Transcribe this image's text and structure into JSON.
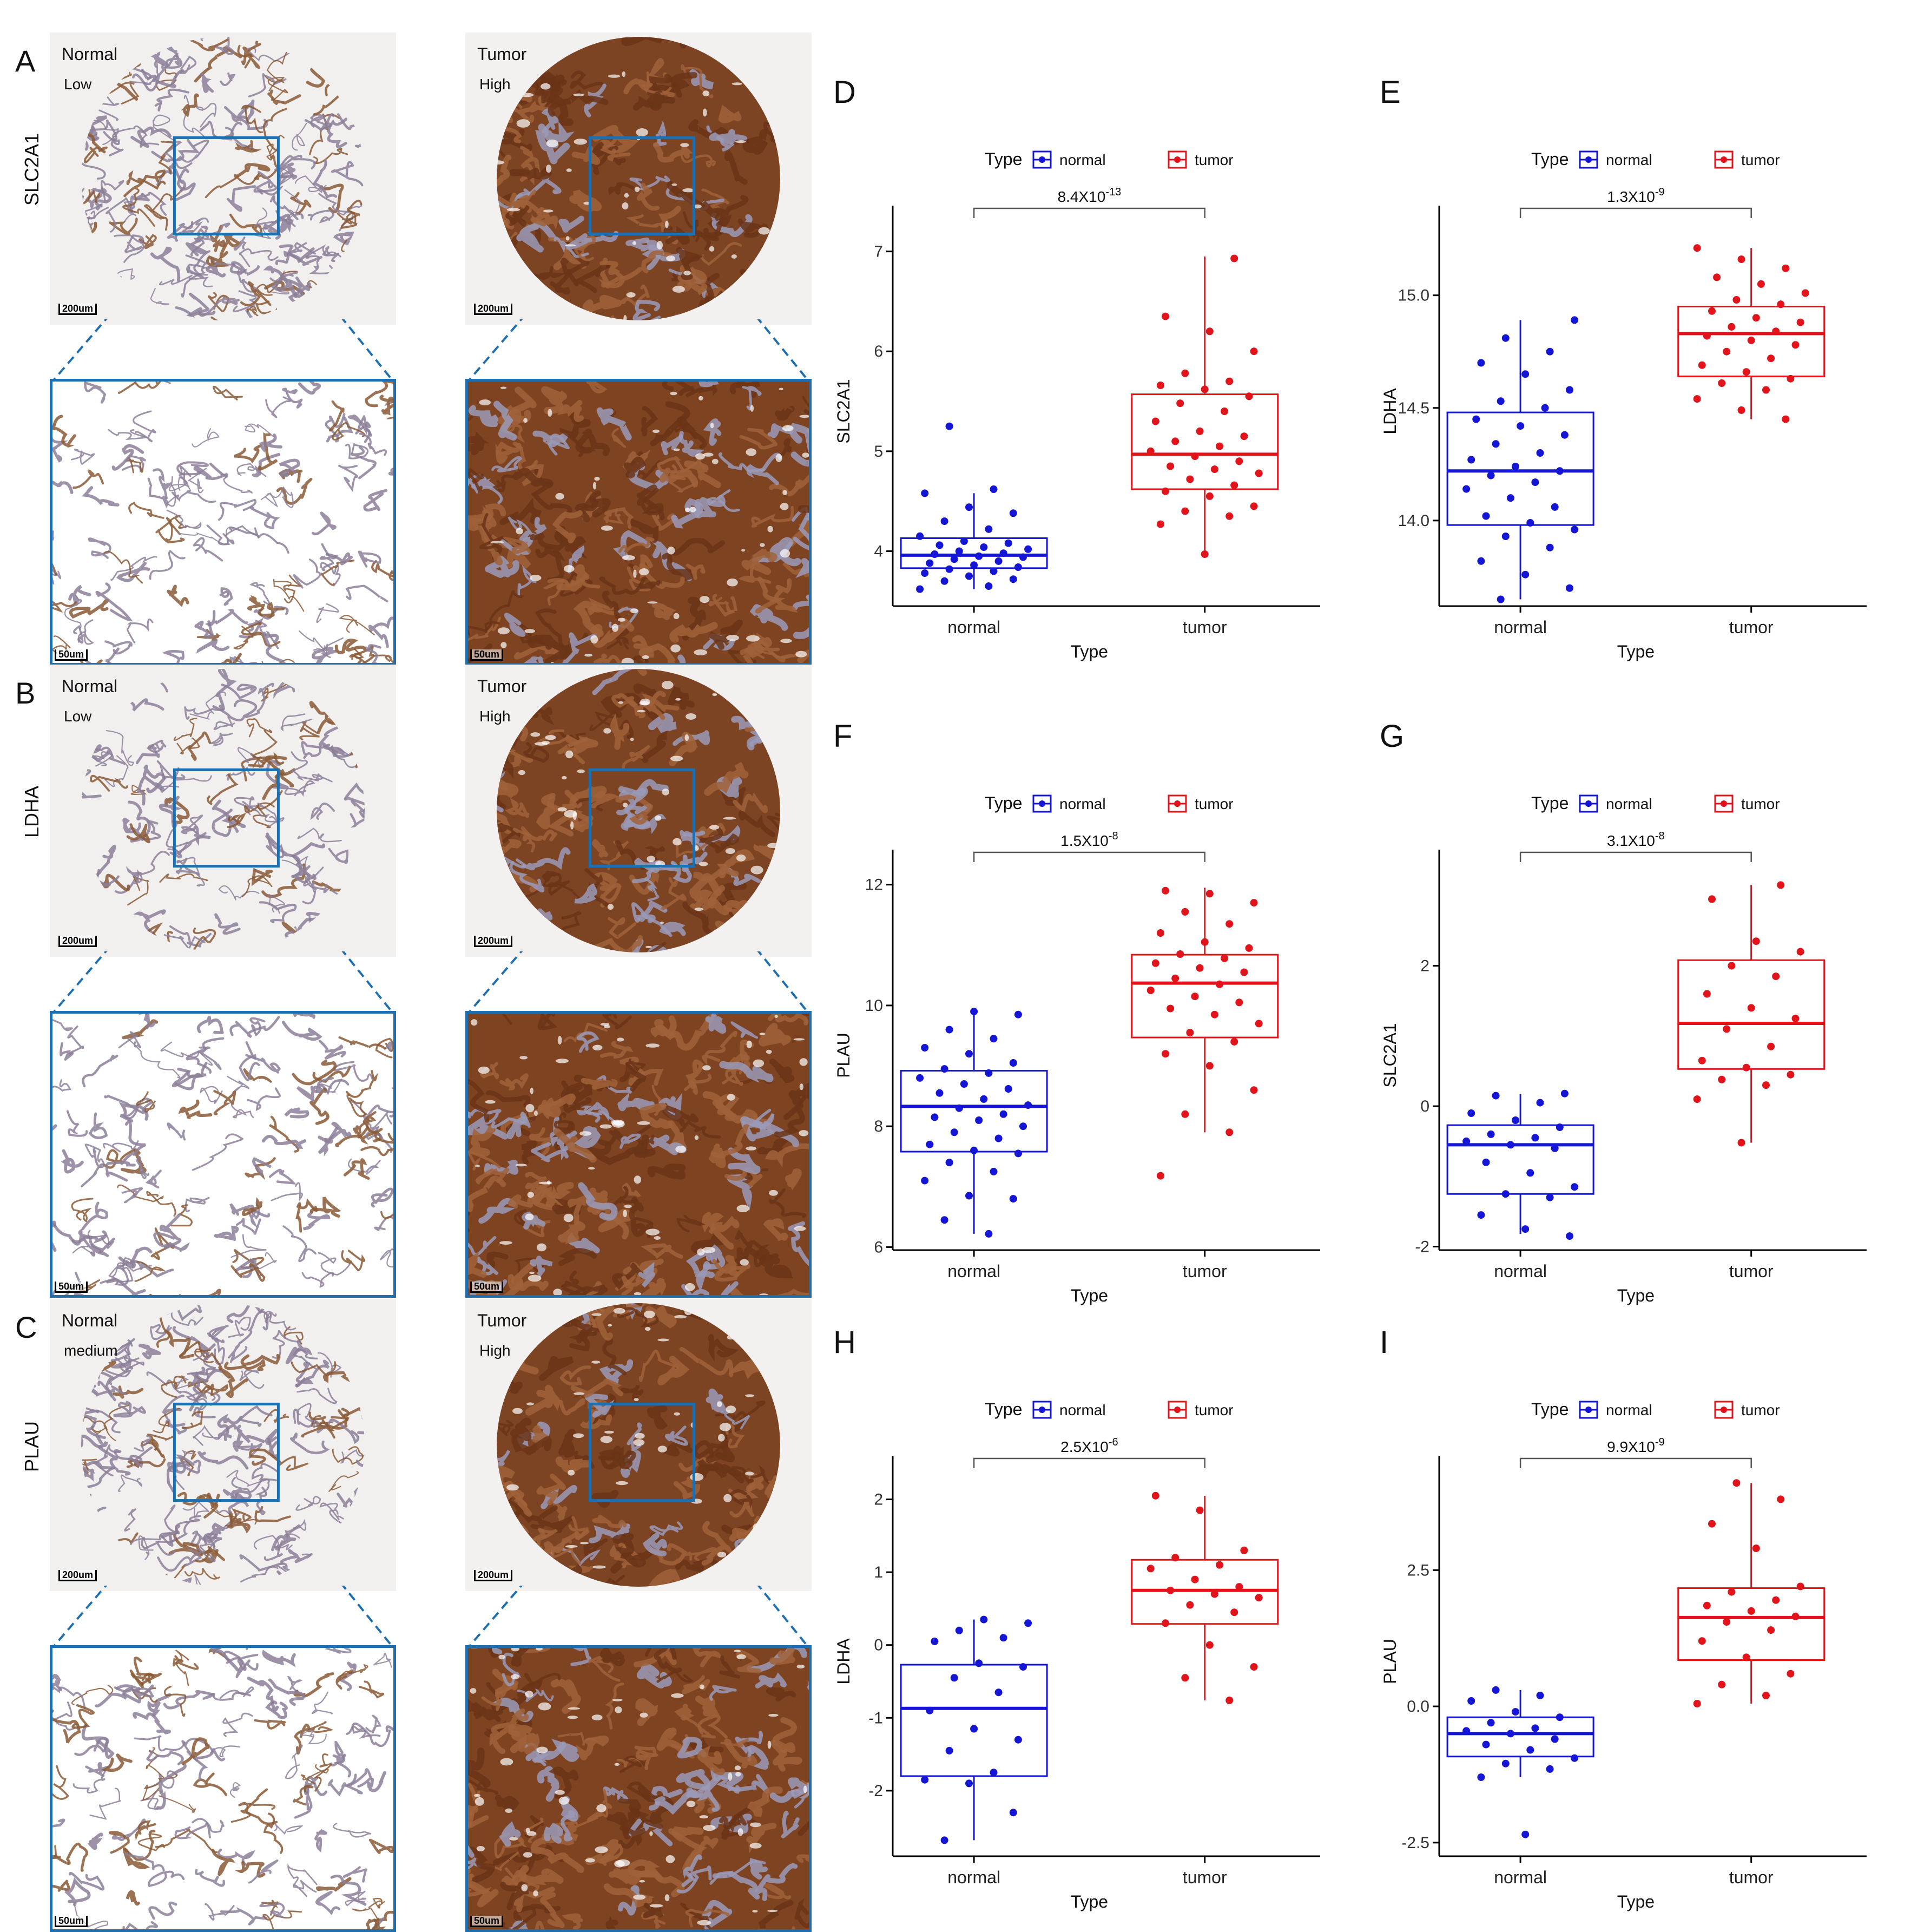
{
  "ihc": {
    "rows": [
      {
        "panel": "A",
        "gene": "SLC2A1",
        "normal": {
          "label": "Normal",
          "level": "Low",
          "scale_top": "200um",
          "scale_zoom": "50um"
        },
        "tumor": {
          "label": "Tumor",
          "level": "High",
          "scale_top": "200um",
          "scale_zoom": "50um"
        }
      },
      {
        "panel": "B",
        "gene": "LDHA",
        "normal": {
          "label": "Normal",
          "level": "Low",
          "scale_top": "200um",
          "scale_zoom": "50um"
        },
        "tumor": {
          "label": "Tumor",
          "level": "High",
          "scale_top": "200um",
          "scale_zoom": "50um"
        }
      },
      {
        "panel": "C",
        "gene": "PLAU",
        "normal": {
          "label": "Normal",
          "level": "medium",
          "scale_top": "200um",
          "scale_zoom": "50um"
        },
        "tumor": {
          "label": "Tumor",
          "level": "High",
          "scale_top": "200um",
          "scale_zoom": "50um"
        }
      }
    ],
    "colors": {
      "normal_bg": "#f2efef",
      "normal_tissue": "#8c7f98",
      "tumor_bg": "#f3f1f0",
      "tumor_tissue": "#8a4a24",
      "zoom_box": "#1f6fae"
    }
  },
  "legend": {
    "title": "Type",
    "items": [
      "normal",
      "tumor"
    ]
  },
  "colors": {
    "normal": "#1515d6",
    "tumor": "#e0141a"
  },
  "chart_data": [
    {
      "panel": "D",
      "type": "box",
      "title": "",
      "xlabel": "Type",
      "ylabel": "SLC2A1",
      "categories": [
        "normal",
        "tumor"
      ],
      "ylim": [
        3.45,
        7.35
      ],
      "yticks": [
        4,
        5,
        6,
        7
      ],
      "ytick_labels": [
        "4",
        "5",
        "6",
        "7"
      ],
      "pvalue": {
        "base": "8.4X10",
        "exp": "-13"
      },
      "box": [
        {
          "q1": 3.83,
          "median": 3.96,
          "q3": 4.13,
          "wlow": 3.62,
          "whigh": 4.58
        },
        {
          "q1": 4.62,
          "median": 4.97,
          "q3": 5.57,
          "wlow": 3.97,
          "whigh": 6.95
        }
      ],
      "points": [
        [
          3.62,
          3.65,
          3.7,
          3.72,
          3.75,
          3.78,
          3.8,
          3.82,
          3.84,
          3.86,
          3.88,
          3.9,
          3.92,
          3.94,
          3.95,
          3.97,
          3.98,
          4.0,
          4.02,
          4.04,
          4.06,
          4.08,
          4.1,
          4.15,
          4.22,
          4.3,
          4.38,
          4.44,
          4.58,
          4.62,
          5.25
        ],
        [
          3.97,
          4.27,
          4.35,
          4.4,
          4.45,
          4.55,
          4.6,
          4.66,
          4.72,
          4.78,
          4.82,
          4.85,
          4.9,
          4.95,
          5.0,
          5.05,
          5.1,
          5.15,
          5.2,
          5.3,
          5.4,
          5.48,
          5.55,
          5.62,
          5.66,
          5.7,
          5.78,
          6.0,
          6.2,
          6.35,
          6.93
        ]
      ]
    },
    {
      "panel": "E",
      "type": "box",
      "title": "",
      "xlabel": "Type",
      "ylabel": "LDHA",
      "categories": [
        "normal",
        "tumor"
      ],
      "ylim": [
        13.62,
        15.35
      ],
      "yticks": [
        14.0,
        14.5,
        15.0
      ],
      "ytick_labels": [
        "14.0",
        "14.5",
        "15.0"
      ],
      "pvalue": {
        "base": "1.3X10",
        "exp": "-9"
      },
      "box": [
        {
          "q1": 13.98,
          "median": 14.22,
          "q3": 14.48,
          "wlow": 13.65,
          "whigh": 14.89
        },
        {
          "q1": 14.64,
          "median": 14.83,
          "q3": 14.95,
          "wlow": 14.45,
          "whigh": 15.21
        }
      ],
      "points": [
        [
          13.65,
          13.7,
          13.76,
          13.82,
          13.88,
          13.93,
          13.96,
          13.99,
          14.02,
          14.06,
          14.1,
          14.14,
          14.17,
          14.2,
          14.22,
          14.24,
          14.27,
          14.3,
          14.34,
          14.38,
          14.42,
          14.45,
          14.5,
          14.53,
          14.58,
          14.65,
          14.7,
          14.75,
          14.81,
          14.89
        ],
        [
          14.45,
          14.49,
          14.54,
          14.58,
          14.61,
          14.63,
          14.66,
          14.69,
          14.72,
          14.75,
          14.78,
          14.8,
          14.82,
          14.84,
          14.86,
          14.88,
          14.9,
          14.93,
          14.96,
          14.98,
          15.01,
          15.05,
          15.08,
          15.12,
          15.16,
          15.21
        ]
      ]
    },
    {
      "panel": "F",
      "type": "box",
      "title": "",
      "xlabel": "Type",
      "ylabel": "PLAU",
      "categories": [
        "normal",
        "tumor"
      ],
      "ylim": [
        5.95,
        12.4
      ],
      "yticks": [
        6,
        8,
        10,
        12
      ],
      "ytick_labels": [
        "6",
        "8",
        "10",
        "12"
      ],
      "pvalue": {
        "base": "1.5X10",
        "exp": "-8"
      },
      "box": [
        {
          "q1": 7.58,
          "median": 8.33,
          "q3": 8.92,
          "wlow": 6.22,
          "whigh": 9.93
        },
        {
          "q1": 9.47,
          "median": 10.37,
          "q3": 10.84,
          "wlow": 7.9,
          "whigh": 11.95
        }
      ],
      "points": [
        [
          6.22,
          6.45,
          6.8,
          6.85,
          7.1,
          7.25,
          7.4,
          7.55,
          7.6,
          7.7,
          7.8,
          7.9,
          8.0,
          8.1,
          8.15,
          8.2,
          8.3,
          8.35,
          8.45,
          8.55,
          8.62,
          8.7,
          8.8,
          8.88,
          8.95,
          9.05,
          9.2,
          9.3,
          9.45,
          9.6,
          9.85,
          9.9
        ],
        [
          7.18,
          7.9,
          8.2,
          8.6,
          9.0,
          9.2,
          9.4,
          9.55,
          9.7,
          9.85,
          9.95,
          10.05,
          10.15,
          10.25,
          10.35,
          10.45,
          10.55,
          10.62,
          10.7,
          10.78,
          10.85,
          10.95,
          11.05,
          11.2,
          11.35,
          11.55,
          11.7,
          11.85,
          11.9
        ]
      ]
    },
    {
      "panel": "G",
      "type": "box",
      "title": "",
      "xlabel": "Type",
      "ylabel": "SLC2A1",
      "categories": [
        "normal",
        "tumor"
      ],
      "ylim": [
        -2.05,
        3.5
      ],
      "yticks": [
        -2,
        0,
        2
      ],
      "ytick_labels": [
        "-2",
        "0",
        "2"
      ],
      "pvalue": {
        "base": "3.1X10",
        "exp": "-8"
      },
      "box": [
        {
          "q1": -1.25,
          "median": -0.55,
          "q3": -0.27,
          "wlow": -1.82,
          "whigh": 0.17
        },
        {
          "q1": 0.53,
          "median": 1.18,
          "q3": 2.08,
          "wlow": -0.52,
          "whigh": 3.15
        }
      ],
      "points": [
        [
          -1.85,
          -1.75,
          -1.55,
          -1.3,
          -1.25,
          -1.15,
          -0.95,
          -0.8,
          -0.6,
          -0.55,
          -0.5,
          -0.45,
          -0.4,
          -0.3,
          -0.2,
          -0.1,
          0.05,
          0.15,
          0.18
        ],
        [
          -0.52,
          0.1,
          0.3,
          0.38,
          0.45,
          0.55,
          0.65,
          0.85,
          1.1,
          1.25,
          1.4,
          1.6,
          1.85,
          2.0,
          2.2,
          2.35,
          2.95,
          3.15
        ]
      ]
    },
    {
      "panel": "H",
      "type": "box",
      "title": "",
      "xlabel": "Type",
      "ylabel": "LDHA",
      "categories": [
        "normal",
        "tumor"
      ],
      "ylim": [
        -2.9,
        2.45
      ],
      "yticks": [
        -2,
        -1,
        0,
        1,
        2
      ],
      "ytick_labels": [
        "-2",
        "-1",
        "0",
        "1",
        "2"
      ],
      "pvalue": {
        "base": "2.5X10",
        "exp": "-6"
      },
      "box": [
        {
          "q1": -1.8,
          "median": -0.87,
          "q3": -0.27,
          "wlow": -2.68,
          "whigh": 0.35
        },
        {
          "q1": 0.29,
          "median": 0.75,
          "q3": 1.17,
          "wlow": -0.76,
          "whigh": 2.05
        }
      ],
      "points": [
        [
          -2.68,
          -2.3,
          -1.9,
          -1.85,
          -1.75,
          -1.45,
          -1.3,
          -1.15,
          -0.9,
          -0.65,
          -0.45,
          -0.3,
          -0.25,
          0.05,
          0.1,
          0.2,
          0.3,
          0.35
        ],
        [
          -0.76,
          -0.45,
          -0.3,
          0.0,
          0.3,
          0.45,
          0.55,
          0.65,
          0.7,
          0.75,
          0.8,
          0.9,
          1.05,
          1.1,
          1.2,
          1.3,
          1.85,
          2.05
        ]
      ]
    },
    {
      "panel": "I",
      "type": "box",
      "title": "",
      "xlabel": "Type",
      "ylabel": "PLAU",
      "categories": [
        "normal",
        "tumor"
      ],
      "ylim": [
        -2.75,
        4.4
      ],
      "yticks": [
        -2.5,
        0.0,
        2.5
      ],
      "ytick_labels": [
        "-2.5",
        "0.0",
        "2.5"
      ],
      "pvalue": {
        "base": "9.9X10",
        "exp": "-9"
      },
      "box": [
        {
          "q1": -0.92,
          "median": -0.5,
          "q3": -0.2,
          "wlow": -1.3,
          "whigh": 0.3
        },
        {
          "q1": 0.85,
          "median": 1.63,
          "q3": 2.17,
          "wlow": 0.05,
          "whigh": 4.1
        }
      ],
      "points": [
        [
          -2.35,
          -1.3,
          -1.15,
          -1.05,
          -0.95,
          -0.8,
          -0.7,
          -0.6,
          -0.5,
          -0.45,
          -0.4,
          -0.3,
          -0.2,
          -0.1,
          0.1,
          0.2,
          0.3
        ],
        [
          0.05,
          0.2,
          0.4,
          0.6,
          0.9,
          1.2,
          1.4,
          1.55,
          1.65,
          1.75,
          1.85,
          1.95,
          2.1,
          2.2,
          2.9,
          3.35,
          3.8,
          4.1
        ]
      ]
    }
  ]
}
